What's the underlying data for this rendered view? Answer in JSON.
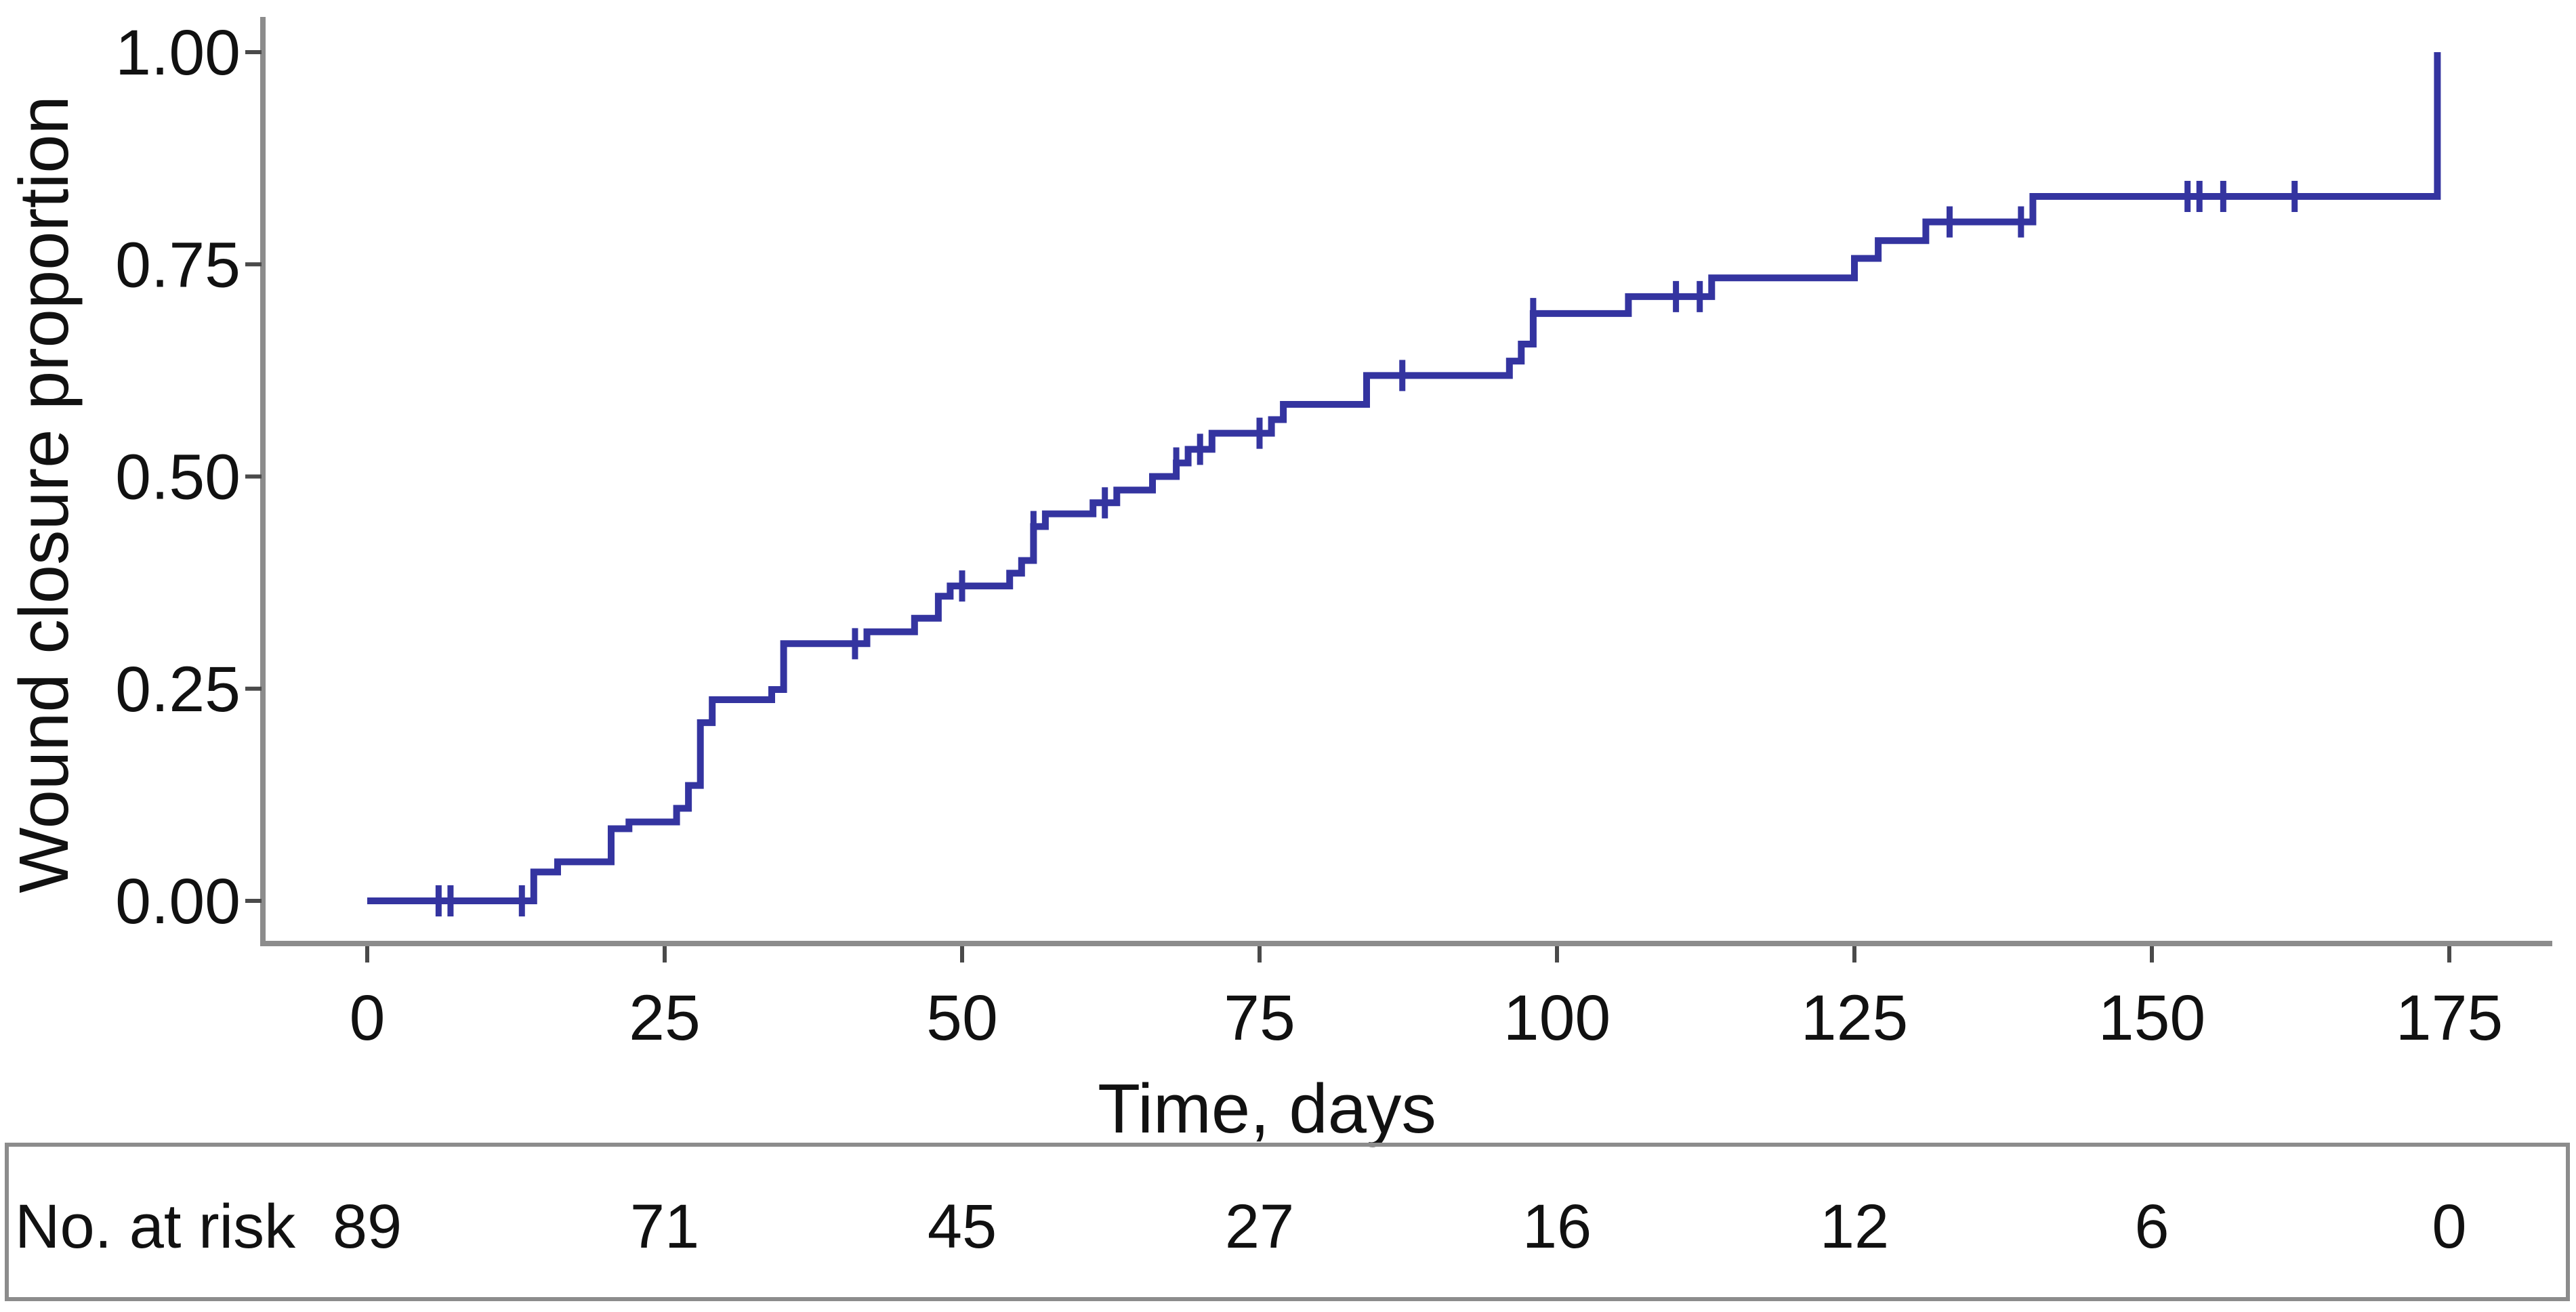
{
  "chart_data": {
    "type": "line",
    "subtype": "kaplan-meier-step",
    "title": "",
    "xlabel": "Time, days",
    "ylabel": "Wound closure proportion",
    "x_ticks": [
      0,
      25,
      50,
      75,
      100,
      125,
      150,
      175
    ],
    "x_tick_labels": [
      "0",
      "25",
      "50",
      "75",
      "100",
      "125",
      "150",
      "175"
    ],
    "y_ticks": [
      0,
      0.25,
      0.5,
      0.75,
      1
    ],
    "y_tick_labels": [
      "0.00",
      "0.25",
      "0.50",
      "0.75",
      "1.00"
    ],
    "xlim": [
      0,
      183
    ],
    "ylim": [
      0,
      1
    ],
    "grid": "off",
    "legend": "none",
    "line_color": "#3434A0",
    "axis_color": "#8C8C8C",
    "tick_color": "#4A4A4A",
    "text_color": "#111111",
    "series": [
      {
        "name": "Wound closure proportion",
        "steps": [
          [
            0,
            0.0
          ],
          [
            14,
            0.034
          ],
          [
            16,
            0.046
          ],
          [
            20.5,
            0.085
          ],
          [
            22,
            0.093
          ],
          [
            26,
            0.109
          ],
          [
            27,
            0.136
          ],
          [
            28,
            0.21
          ],
          [
            29,
            0.237
          ],
          [
            34,
            0.249
          ],
          [
            35,
            0.303
          ],
          [
            42,
            0.317
          ],
          [
            46,
            0.333
          ],
          [
            48,
            0.359
          ],
          [
            49,
            0.371
          ],
          [
            54,
            0.386
          ],
          [
            55,
            0.401
          ],
          [
            56,
            0.441
          ],
          [
            57,
            0.456
          ],
          [
            61,
            0.469
          ],
          [
            63,
            0.484
          ],
          [
            66,
            0.5
          ],
          [
            68,
            0.516
          ],
          [
            69,
            0.532
          ],
          [
            71,
            0.551
          ],
          [
            76,
            0.567
          ],
          [
            77,
            0.585
          ],
          [
            84,
            0.619
          ],
          [
            96,
            0.636
          ],
          [
            97,
            0.656
          ],
          [
            98,
            0.692
          ],
          [
            106,
            0.712
          ],
          [
            113,
            0.734
          ],
          [
            125,
            0.757
          ],
          [
            127,
            0.778
          ],
          [
            131,
            0.8
          ],
          [
            140,
            0.83
          ],
          [
            174,
            1.0
          ]
        ],
        "censor_marks": [
          [
            6,
            0.0
          ],
          [
            7,
            0.0
          ],
          [
            13,
            0.0
          ],
          [
            41,
            0.303
          ],
          [
            50,
            0.371
          ],
          [
            56,
            0.441
          ],
          [
            62,
            0.469
          ],
          [
            68,
            0.516
          ],
          [
            70,
            0.532
          ],
          [
            75,
            0.551
          ],
          [
            87,
            0.619
          ],
          [
            98,
            0.692
          ],
          [
            110,
            0.712
          ],
          [
            112,
            0.712
          ],
          [
            133,
            0.8
          ],
          [
            139,
            0.8
          ],
          [
            153,
            0.83
          ],
          [
            154,
            0.83
          ],
          [
            156,
            0.83
          ],
          [
            162,
            0.83
          ]
        ]
      }
    ],
    "risk_table": {
      "label": "No. at risk",
      "times": [
        0,
        25,
        50,
        75,
        100,
        125,
        150,
        175
      ],
      "counts": [
        "89",
        "71",
        "45",
        "27",
        "16",
        "12",
        "6",
        "0"
      ]
    }
  }
}
